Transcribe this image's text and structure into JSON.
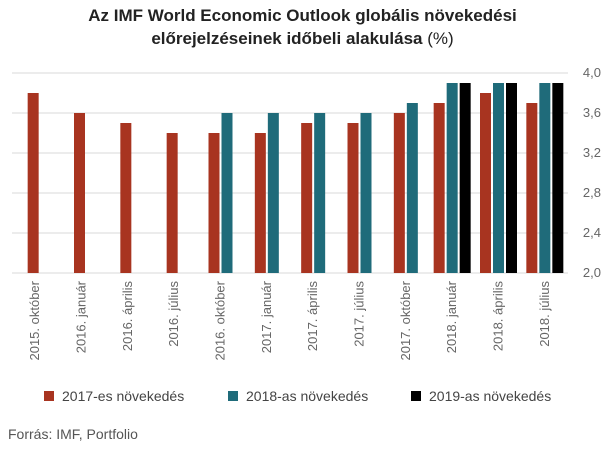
{
  "title_line1": "Az IMF World Economic Outlook globális növekedési",
  "title_line2_bold": "előrejelzéseinek időbeli alakulása",
  "title_line2_unit": " (%)",
  "source": "Forrás: IMF, Portfolio",
  "colors": {
    "s2017": "#a83420",
    "s2018": "#1f6b7a",
    "s2019": "#000000",
    "grid": "#d9d9d9"
  },
  "chart_data": {
    "type": "bar",
    "title": "Az IMF World Economic Outlook globális növekedési előrejelzéseinek időbeli alakulása (%)",
    "categories": [
      "2015. október",
      "2016. január",
      "2016. április",
      "2016. július",
      "2016. október",
      "2017. január",
      "2017. április",
      "2017. július",
      "2017. október",
      "2018. január",
      "2018. április",
      "2018. július"
    ],
    "series": [
      {
        "name": "2017-es növekedés",
        "values": [
          3.8,
          3.6,
          3.5,
          3.4,
          3.4,
          3.4,
          3.5,
          3.5,
          3.6,
          3.7,
          3.8,
          3.7
        ]
      },
      {
        "name": "2018-as növekedés",
        "values": [
          null,
          null,
          null,
          null,
          3.6,
          3.6,
          3.6,
          3.6,
          3.7,
          3.9,
          3.9,
          3.9
        ]
      },
      {
        "name": "2019-as növekedés",
        "values": [
          null,
          null,
          null,
          null,
          null,
          null,
          null,
          null,
          null,
          3.9,
          3.9,
          3.9
        ]
      }
    ],
    "y_ticks": [
      "4,0",
      "3,6",
      "3,2",
      "2,8",
      "2,4",
      "2,0"
    ],
    "y_tick_values": [
      4.0,
      3.6,
      3.2,
      2.8,
      2.4,
      2.0
    ],
    "ylim": [
      2.0,
      4.0
    ],
    "yaxis_position": "right",
    "legend_position": "bottom"
  }
}
